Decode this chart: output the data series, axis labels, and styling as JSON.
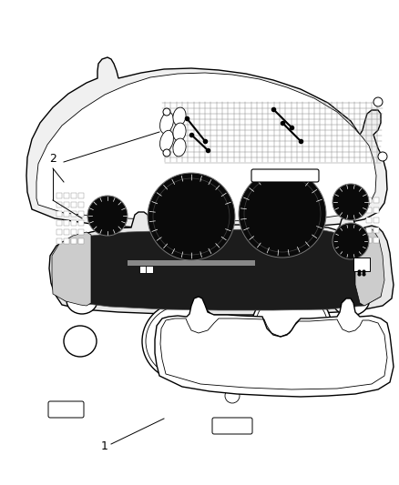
{
  "bg_color": "#ffffff",
  "line_color": "#000000",
  "fig_width": 4.38,
  "fig_height": 5.33,
  "dpi": 100,
  "label1_text": "1",
  "label2_text": "2"
}
